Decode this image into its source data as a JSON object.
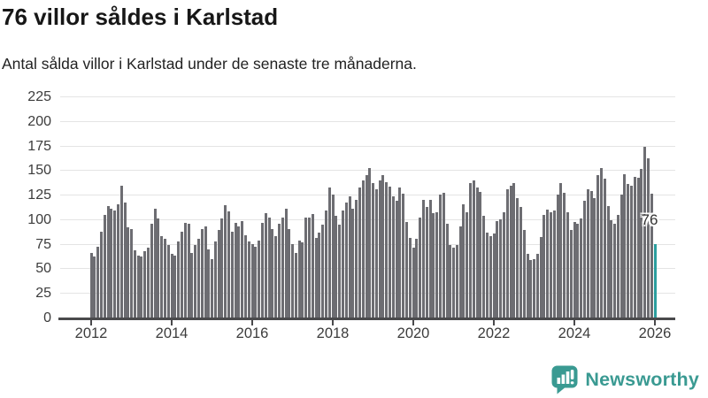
{
  "header": {
    "title": "76 villor såldes i Karlstad",
    "subtitle": "Antal sålda villor i Karlstad under de senaste tre månaderna."
  },
  "branding": {
    "wordmark": "Newsworthy",
    "logo_icon": "newsworthy-speech-bubble-bar-chart-icon",
    "color": "#3a9a92"
  },
  "chart_data": {
    "type": "bar",
    "title": "76 villor såldes i Karlstad",
    "subtitle": "Antal sålda villor i Karlstad under de senaste tre månaderna.",
    "frequency": "monthly",
    "x_start": "2012-01",
    "x_end": "2026-01",
    "values": [
      67,
      63,
      73,
      88,
      105,
      114,
      112,
      110,
      116,
      135,
      118,
      93,
      91,
      69,
      64,
      63,
      68,
      72,
      96,
      112,
      102,
      84,
      81,
      75,
      66,
      64,
      78,
      88,
      97,
      96,
      67,
      75,
      81,
      91,
      94,
      70,
      60,
      78,
      90,
      102,
      115,
      109,
      88,
      97,
      94,
      99,
      85,
      78,
      76,
      73,
      79,
      97,
      107,
      103,
      91,
      84,
      96,
      103,
      112,
      91,
      76,
      67,
      79,
      77,
      103,
      103,
      106,
      82,
      87,
      95,
      110,
      133,
      126,
      104,
      95,
      110,
      118,
      124,
      112,
      121,
      133,
      140,
      146,
      153,
      138,
      131,
      140,
      146,
      139,
      134,
      124,
      120,
      133,
      127,
      98,
      82,
      72,
      81,
      103,
      121,
      113,
      121,
      107,
      108,
      126,
      128,
      96,
      75,
      72,
      75,
      94,
      116,
      108,
      138,
      140,
      133,
      129,
      104,
      87,
      84,
      86,
      99,
      101,
      108,
      131,
      135,
      138,
      122,
      113,
      90,
      66,
      59,
      60,
      66,
      83,
      105,
      111,
      108,
      110,
      126,
      138,
      128,
      108,
      90,
      98,
      96,
      102,
      120,
      131,
      130,
      122,
      146,
      153,
      142,
      114,
      100,
      96,
      105,
      126,
      147,
      137,
      135,
      144,
      143,
      152,
      175,
      163,
      127,
      76
    ],
    "highlight": {
      "index": 168,
      "value": 76,
      "label": "76"
    },
    "ylim": [
      0,
      225
    ],
    "yticks": [
      0,
      25,
      50,
      75,
      100,
      125,
      150,
      175,
      200,
      225
    ],
    "xticks": [
      2012,
      2014,
      2016,
      2018,
      2020,
      2022,
      2024,
      2026
    ],
    "grid": "horizontal",
    "legend": "none",
    "colors": {
      "bar": "#6d6d72",
      "highlight": "#2b9e9e",
      "grid": "#e4e4e4",
      "axis": "#4a4a4c",
      "label": "#3c3c3c"
    }
  }
}
